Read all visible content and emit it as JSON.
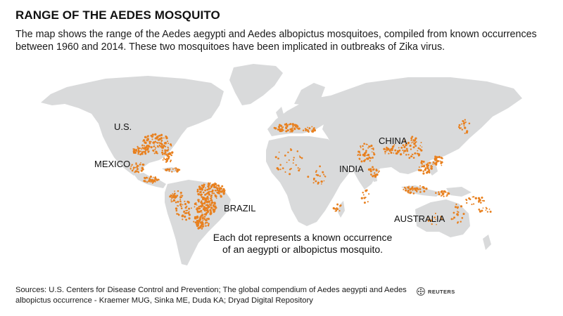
{
  "title": "RANGE OF THE AEDES MOSQUITO",
  "subtitle": "The map shows the range of the Aedes aegypti and Aedes albopictus mosquitoes, compiled from known occurrences between 1960 and 2014. These two mosquitoes have been implicated in outbreaks of Zika virus.",
  "map": {
    "land_color": "#d9dadb",
    "occurrence_color": "#e8801f",
    "labels": {
      "us": "U.S.",
      "mexico": "MEXICO",
      "brazil": "BRAZIL",
      "india": "INDIA",
      "china": "CHINA",
      "australia": "AUSTRALIA"
    }
  },
  "note": "Each dot represents a known occurrence of an aegypti or albopictus mosquito.",
  "sources": "Sources: U.S. Centers for Disease Control and Prevention; The global compendium of Aedes aegypti and Aedes albopictus occurrence - Kraemer MUG, Sinka ME, Duda KA; Dryad Digital Repository",
  "logo": {
    "text": "REUTERS",
    "icon": "reuters-logo-icon"
  }
}
